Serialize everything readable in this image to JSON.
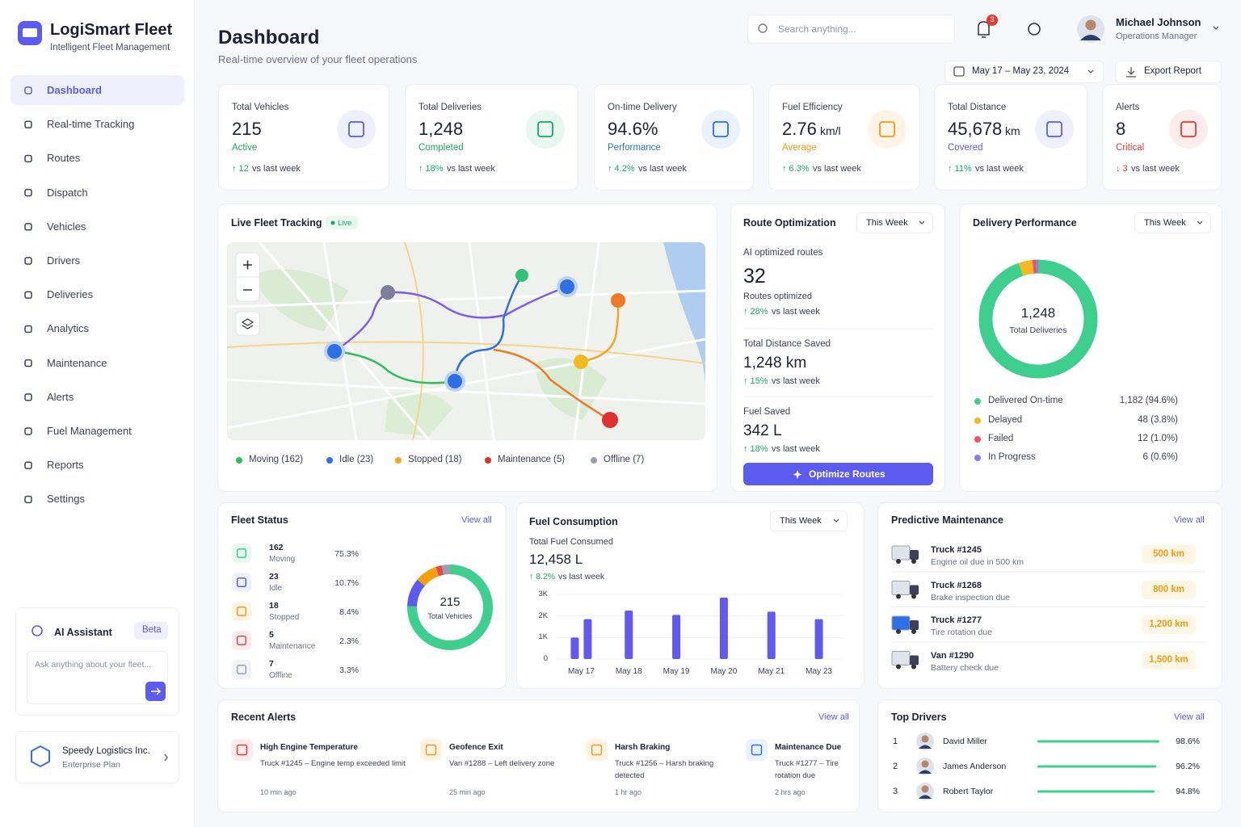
{
  "sidebar": {
    "brand": "LogiSmart Fleet",
    "tagline": "Intelligent Fleet Management",
    "nav": [
      "Dashboard",
      "Real-time Tracking",
      "Routes",
      "Dispatch",
      "Vehicles",
      "Drivers",
      "Deliveries",
      "Analytics",
      "Maintenance",
      "Alerts",
      "Fuel Management",
      "Reports",
      "Settings"
    ],
    "assistant": {
      "title": "AI Assistant",
      "badge": "Beta",
      "placeholder": "Ask anything about your fleet..."
    },
    "org": {
      "name": "Speedy Logistics Inc.",
      "plan": "Enterprise Plan"
    }
  },
  "header": {
    "title": "Dashboard",
    "subtitle": "Real-time overview of your fleet operations",
    "search": "Search anything...",
    "notifications": 3,
    "user": {
      "name": "Michael Johnson",
      "role": "Operations Manager"
    },
    "date_range": "May 17 – May 23, 2024",
    "export": "Export Report"
  },
  "kpis": [
    {
      "label": "Total Vehicles",
      "value": "215",
      "status": "Active",
      "change": "↑ 12",
      "note": "vs last week"
    },
    {
      "label": "Total Deliveries",
      "value": "1,248",
      "status": "Completed",
      "change": "↑ 18%",
      "note": "vs last week"
    },
    {
      "label": "On-time Delivery",
      "value": "94.6%",
      "status": "Performance",
      "change": "↑ 4.2%",
      "note": "vs last week"
    },
    {
      "label": "Fuel Efficiency",
      "value": "2.76",
      "unit": "km/l",
      "status": "Average",
      "change": "↑ 6.3%",
      "note": "vs last week"
    },
    {
      "label": "Total Distance",
      "value": "45,678",
      "unit": "km",
      "status": "Covered",
      "change": "↑ 11%",
      "note": "vs last week"
    },
    {
      "label": "Alerts",
      "value": "8",
      "status": "Critical",
      "change": "↓ 3",
      "note": "vs last week"
    }
  ],
  "live_tracking": {
    "title": "Live Fleet Tracking",
    "badge": "Live",
    "legend": [
      "Moving (162)",
      "Idle (23)",
      "Stopped (18)",
      "Maintenance (5)",
      "Offline (7)"
    ]
  },
  "route_optimization": {
    "title": "Route Optimization",
    "filter": "This Week",
    "label": "AI optimized routes",
    "value": "32",
    "sublabel": "Routes optimized",
    "stats": [
      {
        "change": "↑ 28%",
        "note": "vs last week"
      },
      {
        "label": "Total Distance Saved",
        "value": "1,248 km",
        "change": "↑ 15%",
        "note": "vs last week"
      },
      {
        "label": "Fuel Saved",
        "value": "342 L",
        "change": "↑ 18%",
        "note": "vs last week"
      }
    ],
    "button": "Optimize Routes"
  },
  "delivery_performance": {
    "type": "donut",
    "title": "Delivery Performance",
    "filter": "This Week",
    "total": "1,248",
    "total_label": "Total Deliveries",
    "series": [
      {
        "name": "Delivered On-time",
        "value": 94.6,
        "label": "1,182 (94.6%)",
        "color": "#3ecf8e"
      },
      {
        "name": "Delayed",
        "value": 3.8,
        "label": "48 (3.8%)",
        "color": "#f5b920"
      },
      {
        "name": "Failed",
        "value": 1.0,
        "label": "12 (1.0%)",
        "color": "#f0506e"
      },
      {
        "name": "In Progress",
        "value": 0.6,
        "label": "6 (0.6%)",
        "color": "#8b7cf6"
      }
    ]
  },
  "fleet_status": {
    "type": "donut",
    "title": "Fleet Status",
    "link": "View all",
    "total": "215",
    "total_label": "Total Vehicles",
    "series": [
      {
        "count": 162,
        "name": "Moving",
        "share": "75.3%",
        "color": "#3ecf8e"
      },
      {
        "count": 23,
        "name": "Idle",
        "share": "10.7%",
        "color": "#5b5bf0"
      },
      {
        "count": 18,
        "name": "Stopped",
        "share": "8.4%",
        "color": "#f59e0b"
      },
      {
        "count": 5,
        "name": "Maintenance",
        "share": "2.3%",
        "color": "#e5484d"
      },
      {
        "count": 7,
        "name": "Offline",
        "share": "3.3%",
        "color": "#9aa0b4"
      }
    ]
  },
  "fuel_consumption": {
    "type": "bar",
    "title": "Fuel Consumption",
    "filter": "This Week",
    "total_label": "Total Fuel Consumed",
    "total": "12,458 L",
    "change": "↑ 8.2%",
    "note": "vs last week",
    "categories": [
      "May 17",
      "May 18",
      "May 19",
      "May 20",
      "May 21",
      "May 23"
    ],
    "series": [
      {
        "color": "#6259f0",
        "values": [
          1850,
          2250,
          2050,
          2850,
          2200,
          1850
        ]
      },
      {
        "color": "#6259f0",
        "values": [
          1000,
          null,
          null,
          null,
          null,
          null
        ]
      }
    ],
    "ylim": [
      0,
      3000
    ],
    "yticks": [
      0,
      {
        "value": 1000,
        "label": "1K"
      },
      {
        "value": 2000,
        "label": "2K"
      },
      {
        "value": 3000,
        "label": "3K"
      }
    ],
    "grid": true
  },
  "maintenance": {
    "title": "Predictive Maintenance",
    "link": "View all",
    "items": [
      {
        "name": "Truck #1245",
        "task": "Engine oil due in 500 km",
        "due": "500 km"
      },
      {
        "name": "Truck #1268",
        "task": "Brake inspection due",
        "due": "800 km"
      },
      {
        "name": "Truck #1277",
        "task": "Tire rotation due",
        "due": "1,200 km"
      },
      {
        "name": "Van #1290",
        "task": "Battery check due",
        "due": "1,500 km"
      }
    ]
  },
  "recent_alerts": {
    "title": "Recent Alerts",
    "link": "View all",
    "items": [
      {
        "title": "High Engine Temperature",
        "detail": "Truck #1245 – Engine temp exceeded limit",
        "time": "10 min ago"
      },
      {
        "title": "Geofence Exit",
        "detail": "Van #1288 – Left delivery zone",
        "time": "25 min ago"
      },
      {
        "title": "Harsh Braking",
        "detail": "Truck #1256 – Harsh braking detected",
        "time": "1 hr ago"
      },
      {
        "title": "Maintenance Due",
        "detail": "Truck #1277 – Tire rotation due",
        "time": "2 hrs ago"
      }
    ]
  },
  "top_drivers": {
    "title": "Top Drivers",
    "link": "View all",
    "drivers": [
      {
        "rank": 1,
        "name": "David Miller",
        "score": 98.6,
        "score_label": "98.6%"
      },
      {
        "rank": 2,
        "name": "James Anderson",
        "score": 96.2,
        "score_label": "96.2%"
      },
      {
        "rank": 3,
        "name": "Robert Taylor",
        "score": 94.8,
        "score_label": "94.8%"
      }
    ]
  }
}
